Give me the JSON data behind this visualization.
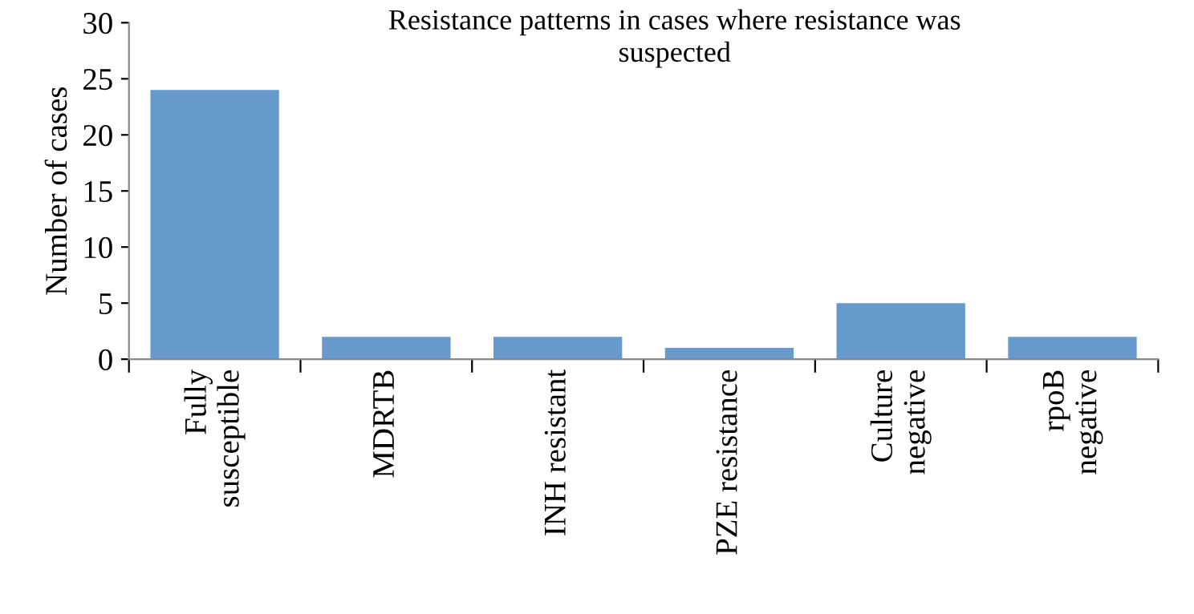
{
  "chart_data": {
    "type": "bar",
    "title": "Resistance patterns in cases where resistance was\nsuspected",
    "ylabel": "Number of cases",
    "categories": [
      "Fully\nsusceptible",
      "MDRTB",
      "INH resistant",
      "PZE resistance",
      "Culture\nnegative",
      "rpoB\nnegative"
    ],
    "values": [
      24,
      2,
      2,
      1,
      5,
      2
    ],
    "color": "#6699cc",
    "ylim": [
      0,
      30
    ],
    "yticks": [
      0,
      5,
      10,
      15,
      20,
      25,
      30
    ],
    "grid": false
  }
}
